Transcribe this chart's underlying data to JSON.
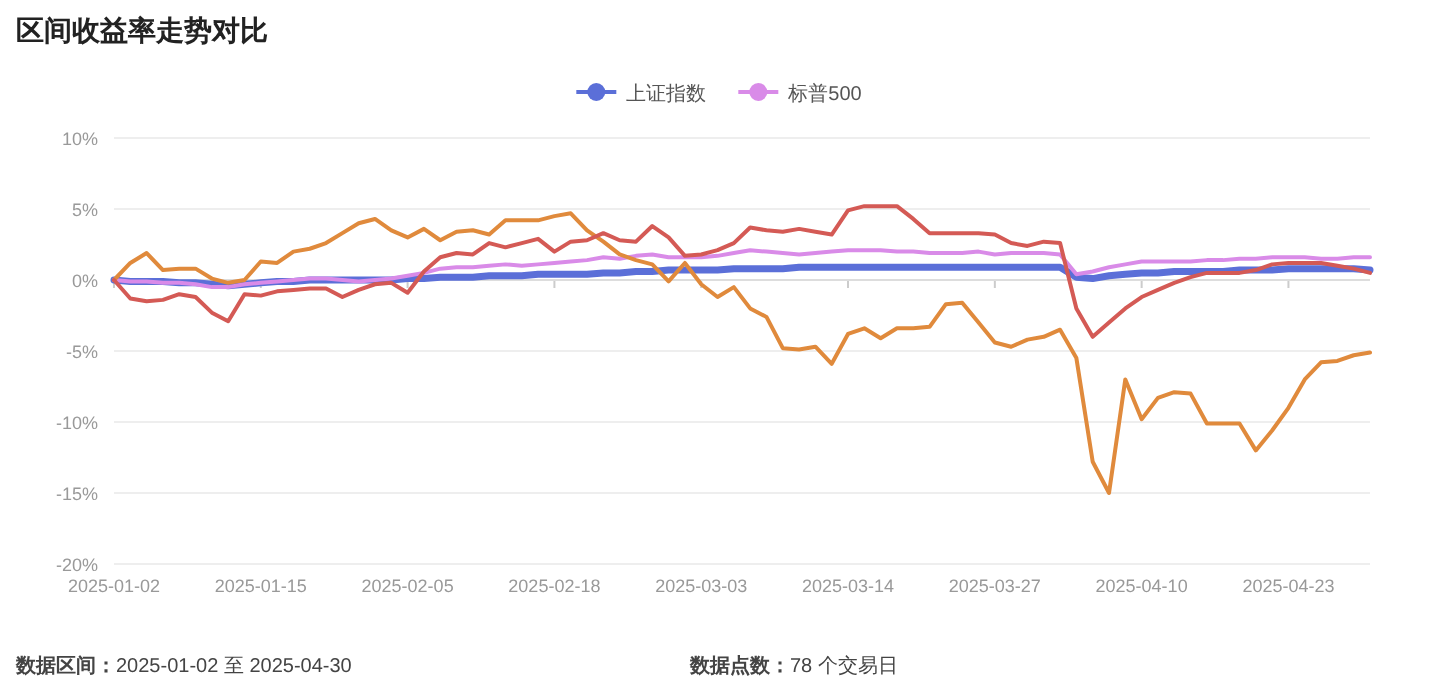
{
  "chart_data": {
    "type": "line",
    "title": "区间收益率走势对比",
    "categories": [
      "2025-01-02",
      null,
      null,
      null,
      null,
      null,
      null,
      null,
      null,
      "2025-01-15",
      null,
      null,
      null,
      null,
      null,
      null,
      null,
      null,
      "2025-02-05",
      null,
      null,
      null,
      null,
      null,
      null,
      null,
      null,
      "2025-02-18",
      null,
      null,
      null,
      null,
      null,
      null,
      null,
      null,
      "2025-03-03",
      null,
      null,
      null,
      null,
      null,
      null,
      null,
      null,
      "2025-03-14",
      null,
      null,
      null,
      null,
      null,
      null,
      null,
      null,
      "2025-03-27",
      null,
      null,
      null,
      null,
      null,
      null,
      null,
      null,
      "2025-04-10",
      null,
      null,
      null,
      null,
      null,
      null,
      null,
      null,
      "2025-04-23",
      null,
      null,
      null,
      null,
      null
    ],
    "series": [
      {
        "name": "上证指数",
        "color": "#5b6fd8",
        "values": [
          0,
          -0.1,
          -0.1,
          -0.1,
          -0.2,
          -0.2,
          -0.3,
          -0.4,
          -0.3,
          -0.2,
          -0.1,
          -0.1,
          0,
          0,
          0,
          0,
          0,
          0,
          0.1,
          0.1,
          0.2,
          0.2,
          0.2,
          0.3,
          0.3,
          0.3,
          0.4,
          0.4,
          0.4,
          0.4,
          0.5,
          0.5,
          0.6,
          0.6,
          0.7,
          0.7,
          0.7,
          0.7,
          0.8,
          0.8,
          0.8,
          0.8,
          0.9,
          0.9,
          0.9,
          0.9,
          0.9,
          0.9,
          0.9,
          0.9,
          0.9,
          0.9,
          0.9,
          0.9,
          0.9,
          0.9,
          0.9,
          0.9,
          0.9,
          0.2,
          0.1,
          0.3,
          0.4,
          0.5,
          0.5,
          0.6,
          0.6,
          0.6,
          0.6,
          0.7,
          0.7,
          0.7,
          0.8,
          0.8,
          0.8,
          0.8,
          0.8,
          0.7
        ]
      },
      {
        "name": "标普500",
        "color": "#d98be8",
        "values": [
          0,
          -0.1,
          -0.1,
          -0.2,
          -0.2,
          -0.3,
          -0.5,
          -0.5,
          -0.3,
          -0.2,
          -0.1,
          0,
          0.1,
          0.1,
          0,
          -0.1,
          0,
          0.1,
          0.3,
          0.5,
          0.8,
          0.9,
          0.9,
          1.0,
          1.1,
          1.0,
          1.1,
          1.2,
          1.3,
          1.4,
          1.6,
          1.5,
          1.7,
          1.8,
          1.6,
          1.6,
          1.6,
          1.7,
          1.9,
          2.1,
          2.0,
          1.9,
          1.8,
          1.9,
          2.0,
          2.1,
          2.1,
          2.1,
          2.0,
          2.0,
          1.9,
          1.9,
          1.9,
          2.0,
          1.8,
          1.9,
          1.9,
          1.9,
          1.8,
          0.4,
          0.6,
          0.9,
          1.1,
          1.3,
          1.3,
          1.3,
          1.3,
          1.4,
          1.4,
          1.5,
          1.5,
          1.6,
          1.6,
          1.6,
          1.5,
          1.5,
          1.6,
          1.6
        ]
      },
      {
        "color": "#e08a3c",
        "values": [
          0,
          1.2,
          1.9,
          0.7,
          0.8,
          0.8,
          0.1,
          -0.2,
          0,
          1.3,
          1.2,
          2.0,
          2.2,
          2.6,
          3.3,
          4.0,
          4.3,
          3.5,
          3.0,
          3.6,
          2.8,
          3.4,
          3.5,
          3.2,
          4.2,
          4.2,
          4.2,
          4.5,
          4.7,
          3.5,
          2.7,
          1.8,
          1.4,
          1.1,
          -0.1,
          1.2,
          -0.3,
          -1.2,
          -0.5,
          -2.0,
          -2.6,
          -4.8,
          -4.9,
          -4.7,
          -5.9,
          -3.8,
          -3.4,
          -4.1,
          -3.4,
          -3.4,
          -3.3,
          -1.7,
          -1.6,
          -3.0,
          -4.4,
          -4.7,
          -4.2,
          -4.0,
          -3.5,
          -5.5,
          -12.8,
          -15.0,
          -7.0,
          -9.8,
          -8.3,
          -7.9,
          -8.0,
          -10.1,
          -10.1,
          -10.1,
          -12.0,
          -10.6,
          -9.0,
          -7.0,
          -5.8,
          -5.7,
          -5.3,
          -5.1
        ]
      },
      {
        "color": "#d45a55",
        "values": [
          0,
          -1.3,
          -1.5,
          -1.4,
          -1.0,
          -1.2,
          -2.3,
          -2.9,
          -1.0,
          -1.1,
          -0.8,
          -0.7,
          -0.6,
          -0.6,
          -1.2,
          -0.7,
          -0.3,
          -0.2,
          -0.9,
          0.6,
          1.6,
          1.9,
          1.8,
          2.6,
          2.3,
          2.6,
          2.9,
          2.0,
          2.7,
          2.8,
          3.3,
          2.8,
          2.7,
          3.8,
          3.0,
          1.7,
          1.8,
          2.1,
          2.6,
          3.7,
          3.5,
          3.4,
          3.6,
          3.4,
          3.2,
          4.9,
          5.2,
          5.2,
          5.2,
          4.3,
          3.3,
          3.3,
          3.3,
          3.3,
          3.2,
          2.6,
          2.4,
          2.7,
          2.6,
          -2.0,
          -4.0,
          -3.0,
          -2.0,
          -1.2,
          -0.7,
          -0.2,
          0.2,
          0.5,
          0.5,
          0.5,
          0.7,
          1.1,
          1.2,
          1.2,
          1.2,
          1.0,
          0.8,
          0.5
        ]
      }
    ],
    "ylim": [
      -20,
      10
    ],
    "yticks": [
      {
        "value": -20,
        "label": "-20%"
      },
      {
        "value": -15,
        "label": "-15%"
      },
      {
        "value": -10,
        "label": "-10%"
      },
      {
        "value": -5,
        "label": "-5%"
      },
      {
        "value": 0,
        "label": "0%"
      },
      {
        "value": 5,
        "label": "5%"
      },
      {
        "value": 10,
        "label": "10%"
      }
    ],
    "grid": "y",
    "legend": "top",
    "marker": "none",
    "line_style": "solid",
    "annotations": [
      "数据区间：2025-01-02 至 2025-04-30",
      "数据点数：78 个交易日"
    ]
  }
}
